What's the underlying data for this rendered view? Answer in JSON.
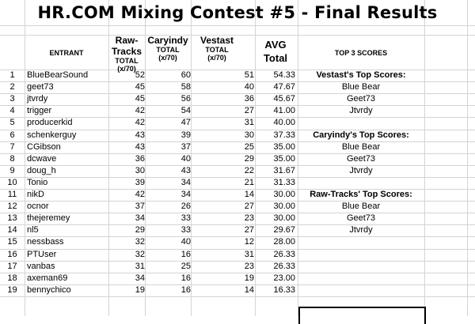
{
  "title": "HR.COM Mixing Contest #5 - Final Results",
  "headers": {
    "entrant": "ENTRANT",
    "raw": {
      "name": "Raw-Tracks",
      "sub1": "TOTAL",
      "sub2": "(x/70)"
    },
    "caryindy": {
      "name": "Caryindy",
      "sub1": "TOTAL",
      "sub2": "(x/70)"
    },
    "vestast": {
      "name": "Vestast",
      "sub1": "TOTAL",
      "sub2": "(x/70)"
    },
    "avg": {
      "line1": "AVG",
      "line2": "Total"
    },
    "top3": "TOP 3 SCORES"
  },
  "rows": [
    {
      "num": "1",
      "name": "BlueBearSound",
      "raw": "52",
      "car": "60",
      "ves": "51",
      "avg": "54.33"
    },
    {
      "num": "2",
      "name": "geet73",
      "raw": "45",
      "car": "58",
      "ves": "40",
      "avg": "47.67"
    },
    {
      "num": "3",
      "name": "jtvrdy",
      "raw": "45",
      "car": "56",
      "ves": "36",
      "avg": "45.67"
    },
    {
      "num": "4",
      "name": "trigger",
      "raw": "42",
      "car": "54",
      "ves": "27",
      "avg": "41.00"
    },
    {
      "num": "5",
      "name": "producerkid",
      "raw": "42",
      "car": "47",
      "ves": "31",
      "avg": "40.00"
    },
    {
      "num": "6",
      "name": "schenkerguy",
      "raw": "43",
      "car": "39",
      "ves": "30",
      "avg": "37.33"
    },
    {
      "num": "7",
      "name": "CGibson",
      "raw": "43",
      "car": "37",
      "ves": "25",
      "avg": "35.00"
    },
    {
      "num": "8",
      "name": "dcwave",
      "raw": "36",
      "car": "40",
      "ves": "29",
      "avg": "35.00"
    },
    {
      "num": "9",
      "name": "doug_h",
      "raw": "30",
      "car": "43",
      "ves": "22",
      "avg": "31.67"
    },
    {
      "num": "10",
      "name": "Tonio",
      "raw": "39",
      "car": "34",
      "ves": "21",
      "avg": "31.33"
    },
    {
      "num": "11",
      "name": "nikD",
      "raw": "42",
      "car": "34",
      "ves": "14",
      "avg": "30.00"
    },
    {
      "num": "12",
      "name": "ocnor",
      "raw": "37",
      "car": "26",
      "ves": "27",
      "avg": "30.00"
    },
    {
      "num": "13",
      "name": "thejeremey",
      "raw": "34",
      "car": "33",
      "ves": "23",
      "avg": "30.00"
    },
    {
      "num": "14",
      "name": "nl5",
      "raw": "29",
      "car": "33",
      "ves": "27",
      "avg": "29.67"
    },
    {
      "num": "15",
      "name": "nessbass",
      "raw": "32",
      "car": "40",
      "ves": "12",
      "avg": "28.00"
    },
    {
      "num": "16",
      "name": "PTUser",
      "raw": "32",
      "car": "16",
      "ves": "31",
      "avg": "26.33"
    },
    {
      "num": "17",
      "name": "vanbas",
      "raw": "31",
      "car": "25",
      "ves": "23",
      "avg": "26.33"
    },
    {
      "num": "18",
      "name": "axeman69",
      "raw": "34",
      "car": "16",
      "ves": "19",
      "avg": "23.00"
    },
    {
      "num": "19",
      "name": "bennychico",
      "raw": "19",
      "car": "16",
      "ves": "14",
      "avg": "16.33"
    }
  ],
  "top_scores": [
    {
      "heading": "Vestast's Top Scores:",
      "names": [
        "Blue Bear",
        "Geet73",
        "Jtvrdy"
      ]
    },
    {
      "heading": "Caryindy's Top Scores:",
      "names": [
        "Blue Bear",
        "Geet73",
        "Jtvrdy"
      ]
    },
    {
      "heading": "Raw-Tracks' Top Scores:",
      "names": [
        "Blue Bear",
        "Geet73",
        "Jtvrdy"
      ]
    }
  ]
}
